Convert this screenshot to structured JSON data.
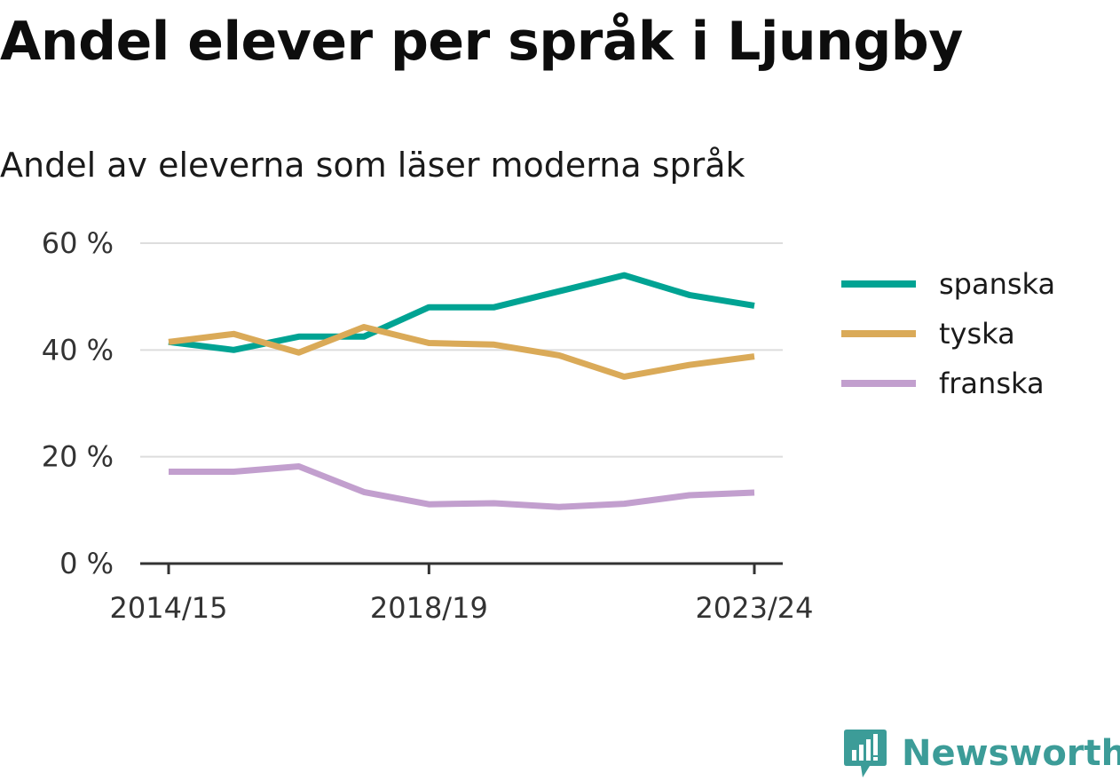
{
  "chart_data": {
    "type": "line",
    "title": "Andel elever per språk i Ljungby",
    "subtitle": "Andel av eleverna som läser moderna språk",
    "categories": [
      "2014/15",
      "2015/16",
      "2016/17",
      "2017/18",
      "2018/19",
      "2019/20",
      "2020/21",
      "2021/22",
      "2022/23",
      "2023/24"
    ],
    "x_tick_labels": [
      "2014/15",
      "2018/19",
      "2023/24"
    ],
    "y_ticks": [
      0,
      20,
      40,
      60
    ],
    "y_tick_labels": [
      "0 %",
      "20 %",
      "40 %",
      "60 %"
    ],
    "ylim": [
      0,
      60
    ],
    "grid": true,
    "legend_position": "right",
    "series": [
      {
        "name": "spanska",
        "color": "#00a393",
        "values": [
          41.5,
          40,
          42.5,
          42.5,
          48,
          48,
          51,
          54,
          50.3,
          48.3
        ]
      },
      {
        "name": "tyska",
        "color": "#daaa58",
        "values": [
          41.5,
          43,
          39.5,
          44.3,
          41.3,
          41,
          39,
          35,
          37.2,
          38.8
        ]
      },
      {
        "name": "franska",
        "color": "#c29fce",
        "values": [
          17.2,
          17.2,
          18.2,
          13.4,
          11.1,
          11.3,
          10.6,
          11.2,
          12.8,
          13.3
        ]
      }
    ]
  },
  "branding": {
    "logo_text": "Newsworthy",
    "logo_icon": "bar-chart-speech-bubble-icon",
    "logo_color": "#3c9c98"
  }
}
